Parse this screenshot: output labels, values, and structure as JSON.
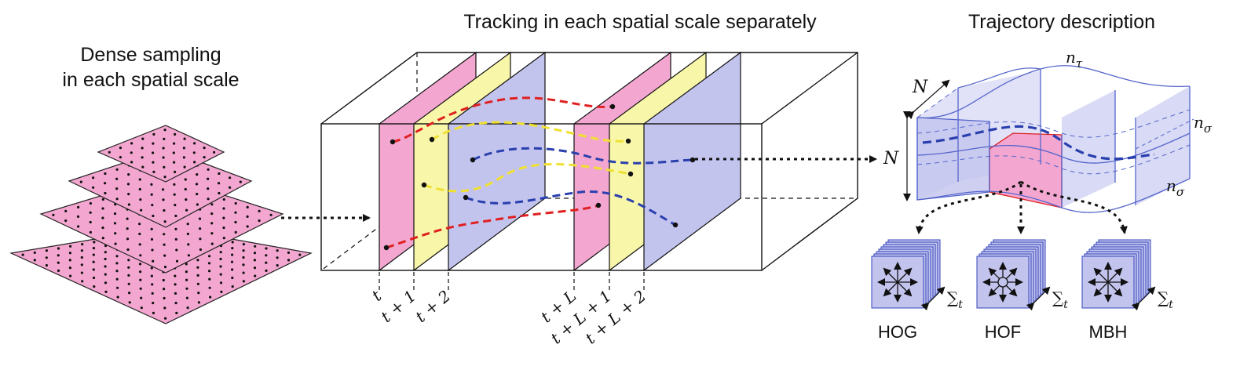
{
  "headings": {
    "left_line1": "Dense sampling",
    "left_line2": "in each spatial scale",
    "middle": "Tracking in each spatial scale separately",
    "right": "Trajectory description"
  },
  "time_labels": [
    "t",
    "t + 1",
    "t + 2",
    "t + L",
    "t + L + 1",
    "t + L + 2"
  ],
  "trajectory_labels": {
    "N_top": "N",
    "N_left": "N",
    "n_tau": "nτ",
    "n_sigma_1": "nσ",
    "n_sigma_2": "nσ"
  },
  "descriptors": [
    {
      "name": "HOG",
      "sum": "∑t"
    },
    {
      "name": "HOF",
      "sum": "∑t"
    },
    {
      "name": "MBH",
      "sum": "∑t"
    }
  ],
  "colors": {
    "pink": "#f3a7d0",
    "yellow": "#f8f6a8",
    "blue": "#c3c4ee",
    "red_track": "#e02020",
    "yellow_track": "#f0e030",
    "blue_track": "#2a3fae",
    "cube_blue": "#5566cc"
  }
}
